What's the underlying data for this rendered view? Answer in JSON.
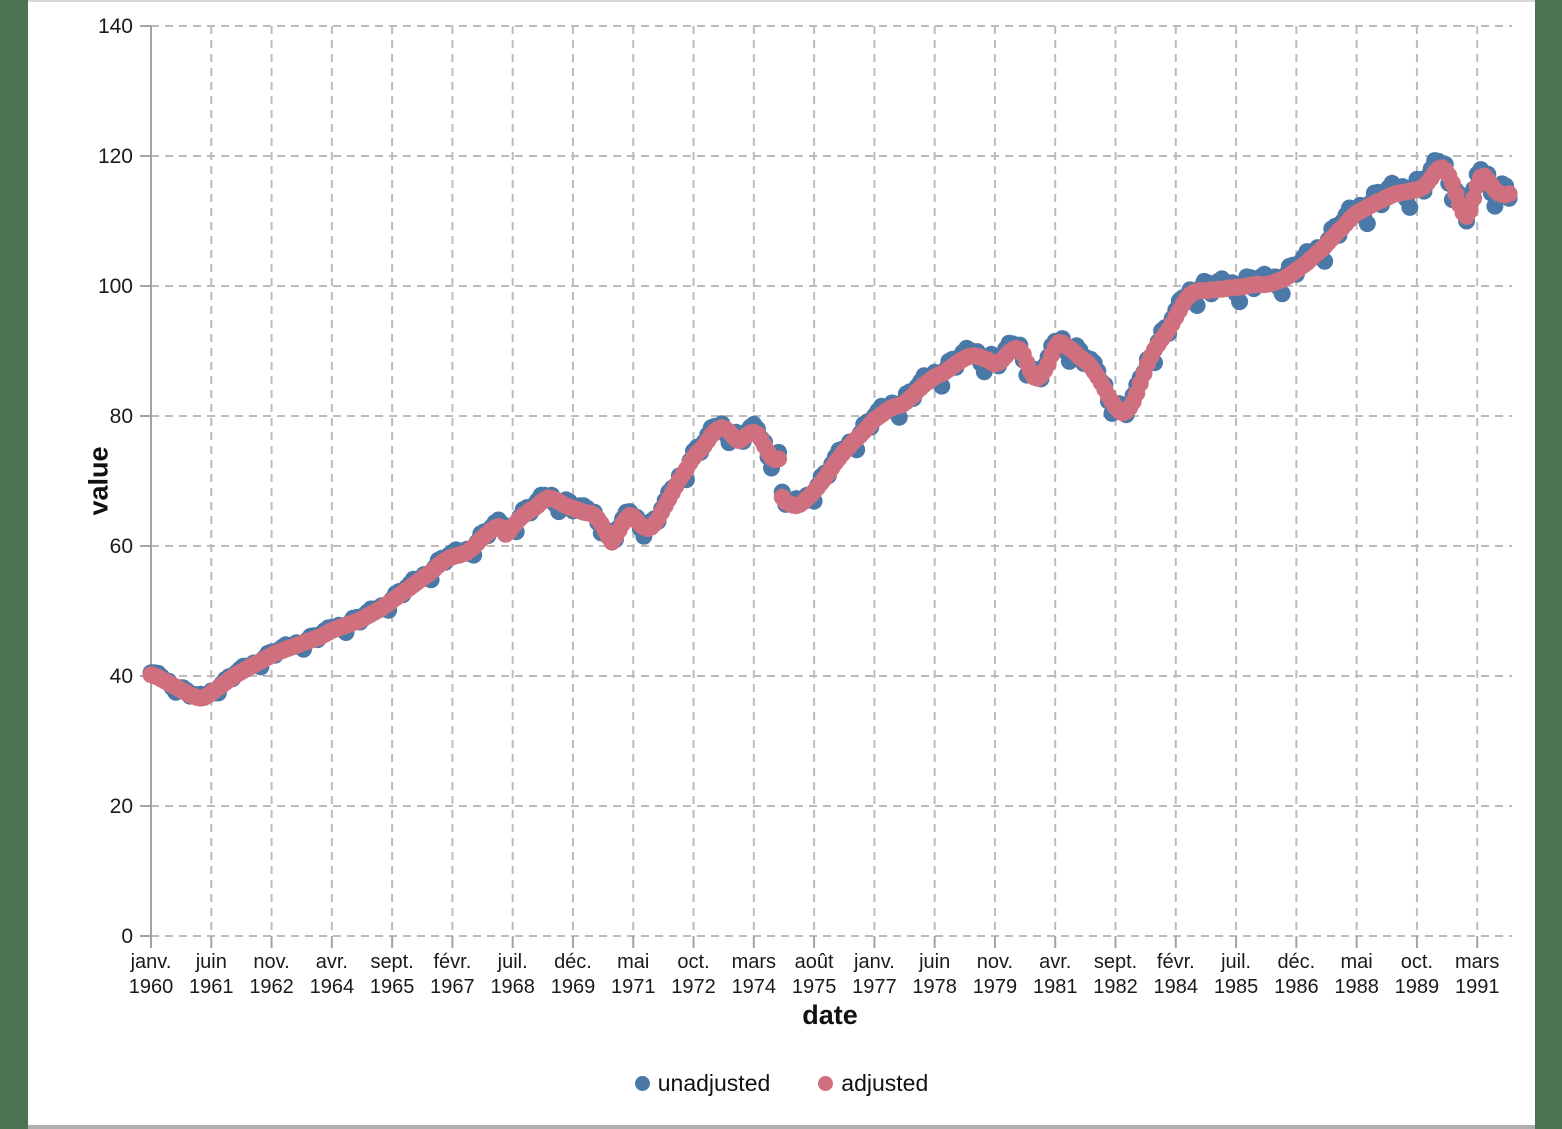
{
  "page": {
    "frame_color": "#4a7450",
    "panel_color": "#ffffff"
  },
  "chart_data": {
    "type": "scatter",
    "title": "",
    "xlabel": "date",
    "ylabel": "value",
    "ylim": [
      0,
      140
    ],
    "y_ticks": [
      0,
      20,
      40,
      60,
      80,
      100,
      120,
      140
    ],
    "grid": "dashed",
    "legend_position": "bottom",
    "frequency": "monthly",
    "x_start_month": "1960-01",
    "x_end_month": "1991-12",
    "n_points": 384,
    "x_tick_step_months": 17,
    "x_tick_labels": [
      {
        "month": "janv.",
        "year": "1960"
      },
      {
        "month": "juin",
        "year": "1961"
      },
      {
        "month": "nov.",
        "year": "1962"
      },
      {
        "month": "avr.",
        "year": "1964"
      },
      {
        "month": "sept.",
        "year": "1965"
      },
      {
        "month": "févr.",
        "year": "1967"
      },
      {
        "month": "juil.",
        "year": "1968"
      },
      {
        "month": "déc.",
        "year": "1969"
      },
      {
        "month": "mai",
        "year": "1971"
      },
      {
        "month": "oct.",
        "year": "1972"
      },
      {
        "month": "mars",
        "year": "1974"
      },
      {
        "month": "août",
        "year": "1975"
      },
      {
        "month": "janv.",
        "year": "1977"
      },
      {
        "month": "juin",
        "year": "1978"
      },
      {
        "month": "nov.",
        "year": "1979"
      },
      {
        "month": "avr.",
        "year": "1981"
      },
      {
        "month": "sept.",
        "year": "1982"
      },
      {
        "month": "févr.",
        "year": "1984"
      },
      {
        "month": "juil.",
        "year": "1985"
      },
      {
        "month": "déc.",
        "year": "1986"
      },
      {
        "month": "mai",
        "year": "1988"
      },
      {
        "month": "oct.",
        "year": "1989"
      },
      {
        "month": "mars",
        "year": "1991"
      }
    ],
    "series": [
      {
        "name": "unadjusted",
        "color": "#4a79a8",
        "values": [
          40.5,
          40.5,
          40.4,
          39.9,
          39.3,
          39.2,
          38.2,
          37.5,
          38.2,
          38.2,
          37.8,
          36.9,
          37.2,
          37.1,
          37.2,
          37.1,
          37.1,
          37.7,
          37.4,
          37.4,
          38.8,
          39.5,
          39.9,
          39.6,
          40.5,
          41.0,
          41.5,
          41.5,
          41.5,
          42.0,
          41.6,
          41.4,
          42.8,
          43.5,
          43.7,
          43.2,
          44.0,
          44.4,
          44.8,
          44.7,
          44.6,
          45.1,
          44.5,
          44.1,
          45.5,
          46.1,
          46.2,
          45.6,
          46.5,
          47.0,
          47.4,
          47.5,
          47.3,
          47.8,
          47.1,
          46.7,
          48.2,
          48.9,
          49.0,
          48.3,
          49.3,
          49.8,
          50.3,
          50.3,
          50.2,
          50.8,
          50.3,
          50.1,
          51.8,
          52.7,
          53.0,
          52.5,
          53.6,
          54.2,
          54.9,
          54.9,
          54.9,
          55.6,
          55.0,
          54.8,
          56.7,
          57.8,
          58.1,
          57.5,
          58.6,
          59.0,
          59.4,
          59.2,
          58.9,
          59.5,
          58.8,
          58.6,
          60.6,
          61.9,
          62.2,
          61.6,
          62.9,
          63.6,
          64.0,
          63.4,
          61.9,
          62.7,
          62.4,
          62.2,
          64.5,
          65.6,
          65.9,
          65.1,
          66.3,
          67.0,
          67.8,
          67.8,
          67.5,
          67.8,
          66.4,
          65.3,
          66.8,
          67.1,
          66.8,
          65.4,
          66.1,
          66.2,
          66.2,
          65.8,
          65.1,
          65.2,
          63.6,
          62.0,
          62.6,
          62.3,
          61.3,
          61.0,
          62.9,
          64.2,
          65.2,
          65.3,
          64.6,
          64.4,
          62.7,
          61.5,
          62.9,
          63.8,
          64.2,
          63.8,
          65.7,
          67.0,
          68.3,
          68.9,
          69.3,
          70.8,
          70.3,
          70.2,
          73.1,
          74.6,
          75.2,
          74.4,
          76.0,
          77.1,
          78.2,
          78.4,
          78.2,
          78.8,
          77.2,
          75.9,
          77.3,
          77.5,
          77.1,
          76.1,
          77.6,
          78.3,
          78.7,
          78.0,
          76.6,
          76.0,
          73.7,
          72.0,
          73.6,
          74.4,
          68.3,
          66.4,
          67.0,
          67.1,
          67.3,
          67.1,
          66.9,
          67.8,
          67.1,
          66.9,
          69.3,
          70.7,
          71.2,
          70.8,
          72.6,
          73.7,
          74.7,
          74.9,
          74.9,
          76.0,
          75.2,
          74.8,
          77.3,
          78.7,
          79.1,
          78.3,
          80.0,
          80.8,
          81.5,
          81.4,
          81.2,
          82.0,
          80.7,
          79.8,
          82.1,
          83.4,
          83.7,
          82.7,
          84.5,
          85.3,
          86.2,
          86.1,
          85.8,
          86.7,
          85.4,
          84.6,
          87.1,
          88.4,
          88.7,
          87.5,
          89.1,
          89.8,
          90.4,
          90.1,
          89.5,
          89.9,
          88.1,
          86.8,
          88.9,
          89.5,
          89.1,
          87.7,
          89.3,
          90.3,
          91.2,
          91.1,
          90.6,
          90.9,
          88.6,
          86.3,
          87.2,
          87.2,
          86.8,
          85.7,
          87.7,
          89.1,
          90.8,
          91.5,
          91.5,
          91.9,
          89.9,
          88.4,
          90.4,
          90.8,
          90.1,
          88.1,
          88.9,
          88.7,
          88.2,
          86.9,
          85.3,
          84.8,
          82.3,
          80.4,
          81.7,
          81.9,
          81.5,
          80.2,
          82.0,
          83.2,
          84.8,
          85.9,
          86.7,
          88.7,
          88.3,
          88.2,
          91.4,
          93.1,
          93.6,
          92.7,
          95.0,
          96.3,
          97.7,
          98.2,
          98.2,
          99.4,
          98.0,
          97.0,
          99.7,
          100.7,
          100.5,
          98.8,
          100.2,
          100.7,
          101.1,
          100.6,
          99.9,
          100.5,
          98.8,
          97.6,
          100.3,
          101.4,
          101.3,
          99.6,
          101.1,
          101.4,
          101.8,
          101.3,
          100.6,
          101.4,
          99.8,
          98.8,
          101.7,
          103.0,
          103.2,
          101.8,
          103.6,
          104.4,
          105.3,
          105.1,
          104.8,
          105.9,
          104.5,
          103.8,
          107.1,
          108.8,
          109.2,
          107.8,
          109.9,
          110.9,
          112.0,
          111.8,
          111.4,
          112.4,
          110.7,
          109.6,
          112.8,
          114.3,
          114.4,
          112.5,
          114.4,
          115.1,
          115.8,
          115.3,
          114.5,
          115.3,
          113.4,
          112.1,
          115.2,
          116.4,
          116.4,
          114.6,
          116.8,
          118.0,
          119.3,
          119.2,
          118.4,
          118.7,
          115.8,
          113.3,
          114.7,
          114.1,
          112.6,
          110.0,
          112.5,
          114.9,
          117.2,
          117.9,
          117.1,
          117.2,
          114.3,
          112.3,
          114.8,
          115.7,
          115.4,
          113.5
        ]
      },
      {
        "name": "adjusted",
        "color": "#d06f7e",
        "values": [
          40.2,
          40.0,
          39.8,
          39.5,
          39.2,
          38.9,
          38.6,
          38.3,
          38.0,
          37.7,
          37.4,
          37.1,
          36.9,
          36.7,
          36.6,
          36.7,
          37.0,
          37.4,
          37.8,
          38.2,
          38.6,
          39.0,
          39.4,
          39.8,
          40.2,
          40.5,
          40.8,
          41.1,
          41.4,
          41.7,
          42.0,
          42.3,
          42.6,
          42.9,
          43.2,
          43.5,
          43.7,
          43.9,
          44.1,
          44.3,
          44.5,
          44.7,
          44.9,
          45.1,
          45.3,
          45.5,
          45.7,
          45.9,
          46.1,
          46.4,
          46.7,
          47.0,
          47.2,
          47.4,
          47.6,
          47.8,
          48.0,
          48.2,
          48.4,
          48.6,
          48.9,
          49.2,
          49.5,
          49.8,
          50.1,
          50.4,
          50.8,
          51.2,
          51.6,
          52.0,
          52.4,
          52.8,
          53.2,
          53.6,
          54.0,
          54.4,
          54.8,
          55.2,
          55.6,
          56.0,
          56.5,
          57.0,
          57.4,
          57.8,
          58.1,
          58.3,
          58.5,
          58.6,
          58.8,
          59.0,
          59.4,
          59.9,
          60.4,
          61.0,
          61.5,
          62.0,
          62.4,
          62.8,
          63.0,
          62.8,
          61.8,
          62.2,
          63.0,
          63.6,
          64.2,
          64.7,
          65.1,
          65.5,
          65.8,
          66.2,
          66.7,
          67.1,
          67.4,
          67.3,
          67.1,
          66.8,
          66.5,
          66.2,
          66.0,
          65.8,
          65.6,
          65.4,
          65.2,
          65.1,
          65.0,
          64.7,
          64.2,
          63.4,
          62.4,
          61.4,
          60.6,
          61.4,
          62.4,
          63.4,
          64.2,
          64.7,
          64.5,
          63.9,
          63.3,
          62.9,
          62.7,
          62.9,
          63.4,
          64.2,
          65.2,
          66.2,
          67.2,
          68.2,
          69.2,
          70.2,
          71.0,
          71.8,
          72.8,
          73.6,
          74.3,
          74.8,
          75.4,
          76.2,
          77.0,
          77.6,
          78.0,
          78.2,
          78.0,
          77.6,
          77.0,
          76.4,
          76.2,
          76.6,
          77.0,
          77.4,
          77.5,
          77.2,
          76.4,
          75.4,
          74.4,
          73.6,
          73.3,
          73.4,
          67.5,
          66.8,
          66.5,
          66.3,
          66.2,
          66.4,
          66.8,
          67.3,
          67.8,
          68.4,
          69.0,
          69.7,
          70.4,
          71.2,
          72.0,
          72.8,
          73.5,
          74.2,
          74.8,
          75.4,
          76.0,
          76.5,
          77.0,
          77.6,
          78.2,
          78.8,
          79.4,
          79.8,
          80.2,
          80.6,
          81.0,
          81.3,
          81.5,
          81.6,
          81.8,
          82.2,
          82.7,
          83.2,
          83.8,
          84.3,
          84.8,
          85.2,
          85.6,
          86.0,
          86.3,
          86.5,
          86.8,
          87.2,
          87.6,
          88.0,
          88.4,
          88.7,
          89.0,
          89.2,
          89.3,
          89.2,
          89.0,
          88.8,
          88.6,
          88.3,
          88.0,
          88.2,
          88.6,
          89.2,
          89.8,
          90.2,
          90.4,
          90.2,
          89.5,
          88.2,
          86.9,
          86.0,
          85.8,
          86.2,
          87.0,
          88.0,
          89.4,
          90.6,
          91.3,
          91.2,
          90.8,
          90.4,
          90.0,
          89.5,
          89.0,
          88.6,
          88.2,
          87.6,
          86.8,
          86.0,
          85.1,
          84.1,
          83.1,
          82.2,
          81.4,
          80.8,
          80.5,
          80.7,
          81.3,
          82.2,
          83.5,
          85.0,
          86.5,
          88.0,
          89.2,
          90.2,
          91.0,
          91.8,
          92.5,
          93.3,
          94.2,
          95.2,
          96.2,
          97.2,
          98.0,
          98.6,
          99.0,
          99.2,
          99.3,
          99.3,
          99.3,
          99.4,
          99.4,
          99.5,
          99.5,
          99.6,
          99.7,
          99.7,
          99.8,
          99.8,
          99.9,
          100.0,
          100.1,
          100.2,
          100.3,
          100.2,
          100.2,
          100.3,
          100.4,
          100.6,
          100.8,
          101.0,
          101.3,
          101.6,
          102.0,
          102.4,
          102.8,
          103.2,
          103.6,
          104.1,
          104.6,
          105.1,
          105.6,
          106.1,
          106.7,
          107.3,
          107.9,
          108.5,
          109.0,
          109.6,
          110.2,
          110.7,
          111.2,
          111.5,
          111.8,
          112.1,
          112.4,
          112.7,
          113.0,
          113.2,
          113.5,
          113.7,
          114.0,
          114.2,
          114.3,
          114.4,
          114.5,
          114.6,
          114.7,
          114.8,
          115.0,
          115.3,
          115.9,
          116.6,
          117.4,
          118.0,
          118.2,
          117.8,
          117.0,
          115.8,
          114.2,
          112.5,
          111.3,
          110.7,
          111.6,
          113.5,
          115.4,
          116.7,
          116.9,
          116.3,
          115.5,
          114.8,
          114.3,
          114.1,
          114.0,
          114.2
        ]
      }
    ]
  },
  "legend": {
    "marker_shape": "circle"
  }
}
